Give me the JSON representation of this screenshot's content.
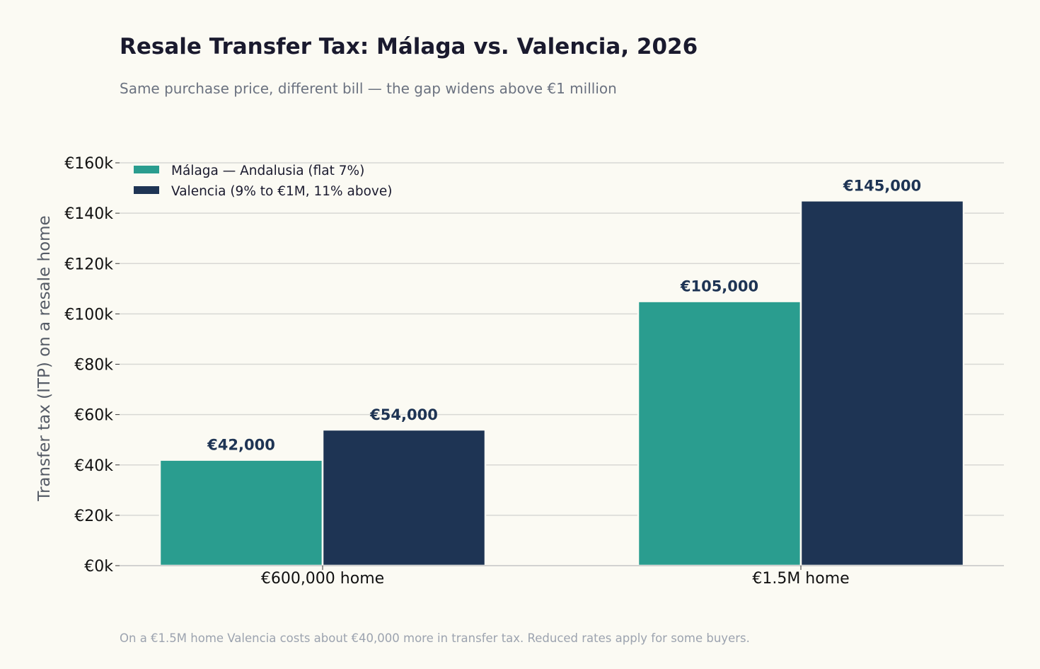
{
  "colors": {
    "background": "#fbfaf3",
    "malaga": "#2a9d8f",
    "valencia": "#1e3454",
    "grid": "#d8d8d4",
    "title": "#1a1a2e",
    "subtitle": "#6b7280",
    "footnote": "#9ca3af",
    "axis_label": "#555b66",
    "tick_label": "#111111",
    "data_label": "#1e3454"
  },
  "chart_data": {
    "type": "bar",
    "title": "Resale Transfer Tax: Málaga vs. Valencia, 2026",
    "subtitle": "Same purchase price, different bill — the gap widens above €1 million",
    "xlabel": "",
    "ylabel": "Transfer tax (ITP) on a resale home",
    "categories": [
      "€600,000 home",
      "€1.5M home"
    ],
    "series": [
      {
        "name": "Málaga — Andalusia (flat 7%)",
        "values": [
          42000,
          105000
        ],
        "labels": [
          "€42,000",
          "€105,000"
        ],
        "color": "#2a9d8f"
      },
      {
        "name": "Valencia (9% to €1M, 11% above)",
        "values": [
          54000,
          145000
        ],
        "labels": [
          "€54,000",
          "€145,000"
        ],
        "color": "#1e3454"
      }
    ],
    "ylim": [
      0,
      160000
    ],
    "yticks": [
      0,
      20000,
      40000,
      60000,
      80000,
      100000,
      120000,
      140000,
      160000
    ],
    "ytick_labels": [
      "€0k",
      "€20k",
      "€40k",
      "€60k",
      "€80k",
      "€100k",
      "€120k",
      "€140k",
      "€160k"
    ],
    "grid": true,
    "legend_position": "top-left",
    "footnote": "On a €1.5M home Valencia costs about €40,000 more in transfer tax. Reduced rates apply for some buyers."
  }
}
